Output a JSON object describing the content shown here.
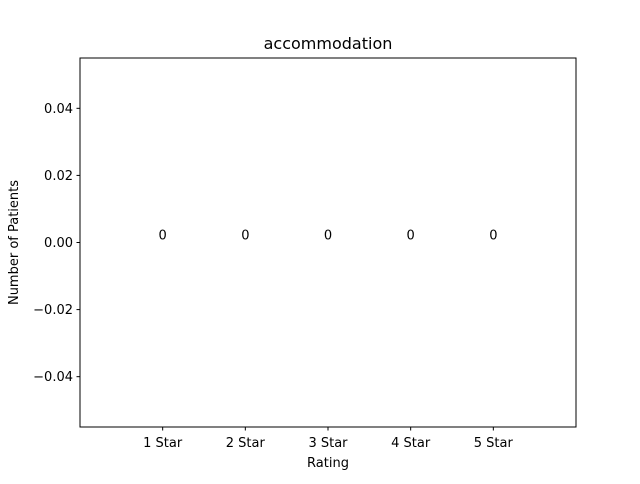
{
  "chart_data": {
    "type": "bar",
    "title": "accommodation",
    "xlabel": "Rating",
    "ylabel": "Number of Patients",
    "categories": [
      "1 Star",
      "2 Star",
      "3 Star",
      "4 Star",
      "5 Star"
    ],
    "values": [
      0,
      0,
      0,
      0,
      0
    ],
    "data_labels": [
      "0",
      "0",
      "0",
      "0",
      "0"
    ],
    "ylim": [
      -0.055,
      0.055
    ],
    "yticks": [
      -0.04,
      -0.02,
      0.0,
      0.02,
      0.04
    ],
    "ytick_labels": [
      "−0.04",
      "−0.02",
      "0.00",
      "0.02",
      "0.04"
    ],
    "grid": false,
    "legend": "none",
    "colors": {
      "axes": "#000000",
      "background": "#ffffff",
      "bar": "#1f77b4"
    }
  }
}
